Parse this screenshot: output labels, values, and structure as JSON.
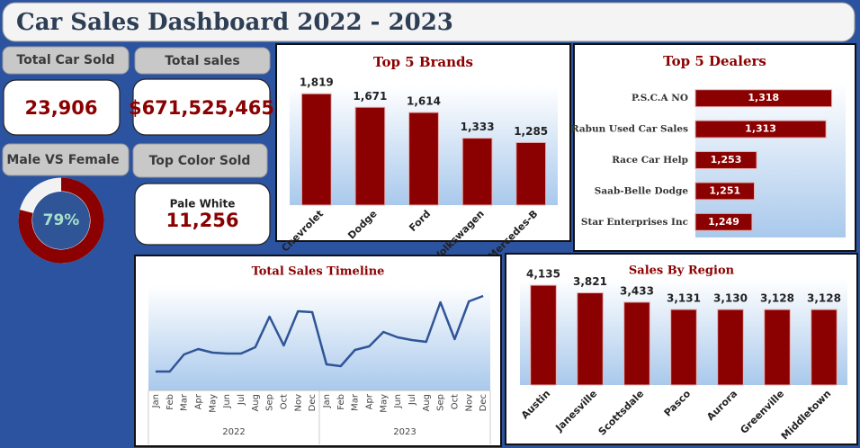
{
  "title": "Car Sales Dashboard 2022 - 2023",
  "cards": [
    {
      "label": "Total Car Sold",
      "value": "23,906"
    },
    {
      "label": "Total sales",
      "value": "$671,525,465"
    },
    {
      "label": "Top Color Sold",
      "value": "Pale White",
      "detail": "11,256"
    }
  ],
  "chart_data": [
    {
      "type": "donut",
      "title": "Male VS Female",
      "values": [
        79
      ],
      "value_labels": [
        "79%"
      ],
      "ylim": [
        0,
        100
      ],
      "color": "#8b0000",
      "track_color": "#f2f2f2"
    },
    {
      "type": "bar",
      "title": "Top 5 Brands",
      "categories": [
        "Chevrolet",
        "Dodge",
        "Ford",
        "Volkswagen",
        "Mercedes-B"
      ],
      "values": [
        1819,
        1671,
        1614,
        1333,
        1285
      ],
      "value_labels": [
        "1,819",
        "1,671",
        "1,614",
        "1,333",
        "1,285"
      ],
      "ylim": [
        600,
        1900
      ],
      "color": "#8b0000"
    },
    {
      "type": "hbar",
      "title": "Top 5 Dealers",
      "categories": [
        "P.S.C.A NO",
        "Rabun Used Car Sales",
        "Race Car Help",
        "Saab-Belle Dodge",
        "Star Enterprises Inc"
      ],
      "values": [
        1318,
        1313,
        1253,
        1251,
        1249
      ],
      "value_labels": [
        "1,318",
        "1,313",
        "1,253",
        "1,251",
        "1,249"
      ],
      "xlim": [
        1200,
        1330
      ],
      "color": "#8b0000"
    },
    {
      "type": "line",
      "title": "Total Sales Timeline",
      "categories": [
        "Jan",
        "Feb",
        "Mar",
        "Apr",
        "May",
        "Jun",
        "Jul",
        "Aug",
        "Sep",
        "Oct",
        "Nov",
        "Dec",
        "Jan",
        "Feb",
        "Mar",
        "Apr",
        "May",
        "Jun",
        "Jul",
        "Aug",
        "Sep",
        "Oct",
        "Nov",
        "Dec"
      ],
      "years": [
        "2022",
        "2023"
      ],
      "values": [
        10.5,
        10.5,
        20,
        23,
        21,
        20.5,
        20.5,
        24,
        41,
        25,
        44,
        43.5,
        14.5,
        13.5,
        22.5,
        24.5,
        32.5,
        29.5,
        28,
        27,
        49,
        28.5,
        49.5,
        52.5
      ],
      "ylim": [
        0,
        58
      ],
      "color": "#2f5597"
    },
    {
      "type": "bar",
      "title": "Sales By Region",
      "categories": [
        "Austin",
        "Janesville",
        "Scottsdale",
        "Pasco",
        "Aurora",
        "Greenville",
        "Middletown"
      ],
      "values": [
        4135,
        3821,
        3433,
        3131,
        3130,
        3128,
        3128
      ],
      "value_labels": [
        "4,135",
        "3,821",
        "3,433",
        "3,131",
        "3,130",
        "3,128",
        "3,128"
      ],
      "ylim": [
        0,
        4400
      ],
      "color": "#8b0000"
    }
  ]
}
